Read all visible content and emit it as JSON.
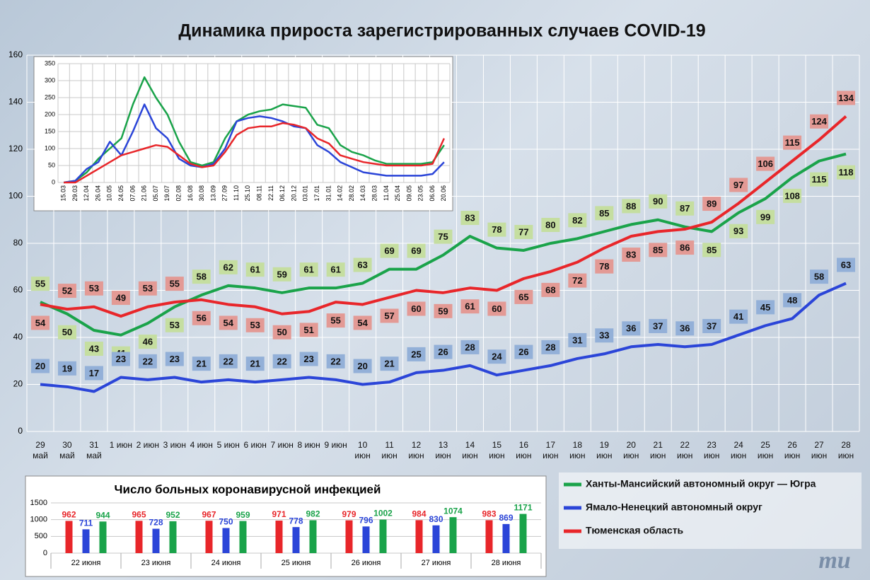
{
  "chart_data": [
    {
      "type": "line",
      "title": "Динамика прироста зарегистрированных случаев COVID-19",
      "categories": [
        "29 май",
        "30 май",
        "31 май",
        "1 июн",
        "2 июн",
        "3 июн",
        "4 июн",
        "5 июн",
        "6 июн",
        "7 июн",
        "8 июн",
        "9 июн",
        "10 июн",
        "11 июн",
        "12 июн",
        "13 июн",
        "14 июн",
        "15 июн",
        "16 июн",
        "17 июн",
        "18 июн",
        "19 июн",
        "20 июн",
        "21 июн",
        "22 июн",
        "23 июн",
        "24 июн",
        "25 июн",
        "26 июн",
        "27 июн",
        "28 июн"
      ],
      "series": [
        {
          "name": "Ханты-Мансийский автономный округ — Югра",
          "color": "#1aa34a",
          "label_color": "#c5dea0",
          "values": [
            55,
            50,
            43,
            41,
            46,
            53,
            58,
            62,
            61,
            59,
            61,
            61,
            63,
            69,
            69,
            75,
            83,
            78,
            77,
            80,
            82,
            85,
            88,
            90,
            87,
            85,
            93,
            99,
            108,
            115,
            118
          ]
        },
        {
          "name": "Ямало-Ненецкий автономный округ",
          "color": "#2b45d8",
          "label_color": "#93b0d8",
          "values": [
            20,
            19,
            17,
            23,
            22,
            23,
            21,
            22,
            21,
            22,
            23,
            22,
            20,
            21,
            25,
            26,
            28,
            24,
            26,
            28,
            31,
            33,
            36,
            37,
            36,
            37,
            41,
            45,
            48,
            58,
            63
          ]
        },
        {
          "name": "Тюменская область",
          "color": "#e8262a",
          "label_color": "#e39a95",
          "values": [
            54,
            52,
            53,
            49,
            53,
            55,
            56,
            54,
            53,
            50,
            51,
            55,
            54,
            57,
            60,
            59,
            61,
            60,
            65,
            68,
            72,
            78,
            83,
            85,
            86,
            89,
            97,
            106,
            115,
            124,
            134
          ]
        }
      ],
      "ylim": [
        0,
        160
      ],
      "yticks": [
        0,
        20,
        40,
        60,
        80,
        100,
        120,
        140,
        160
      ],
      "grid": true,
      "legend": "bottom-right"
    },
    {
      "type": "line",
      "categories": [
        "15.03",
        "29.03",
        "12.04",
        "26.04",
        "10.05",
        "24.05",
        "07.06",
        "21.06",
        "05.07",
        "19.07",
        "02.08",
        "16.08",
        "30.08",
        "13.09",
        "27.09",
        "11.10",
        "25.10",
        "08.11",
        "22.11",
        "06.12",
        "20.12",
        "03.01",
        "17.01",
        "31.01",
        "14.02",
        "28.02",
        "14.03",
        "28.03",
        "11.04",
        "25.04",
        "09.05",
        "23.05",
        "06.06",
        "20.06"
      ],
      "series": [
        {
          "color": "#1aa34a",
          "values": [
            0,
            5,
            30,
            70,
            100,
            130,
            230,
            310,
            250,
            200,
            120,
            60,
            50,
            60,
            130,
            180,
            200,
            210,
            215,
            230,
            225,
            220,
            170,
            160,
            110,
            90,
            80,
            65,
            55,
            55,
            55,
            55,
            60,
            110
          ]
        },
        {
          "color": "#2b45d8",
          "values": [
            0,
            5,
            40,
            60,
            120,
            80,
            150,
            230,
            160,
            130,
            70,
            50,
            45,
            55,
            100,
            180,
            190,
            195,
            190,
            180,
            165,
            160,
            110,
            90,
            60,
            45,
            30,
            25,
            20,
            20,
            20,
            20,
            25,
            60
          ]
        },
        {
          "color": "#e8262a",
          "values": [
            0,
            0,
            20,
            40,
            60,
            80,
            90,
            100,
            110,
            105,
            80,
            55,
            45,
            50,
            90,
            140,
            160,
            165,
            165,
            175,
            170,
            160,
            130,
            115,
            80,
            70,
            60,
            55,
            50,
            50,
            50,
            50,
            55,
            130
          ]
        }
      ],
      "ylim": [
        0,
        350
      ],
      "yticks": [
        0,
        50,
        100,
        150,
        200,
        250,
        300,
        350
      ],
      "grid": true
    },
    {
      "type": "bar",
      "title": "Число больных коронавирусной  инфекцией",
      "categories": [
        "22 июня",
        "23 июня",
        "24 июня",
        "25 июня",
        "26 июня",
        "27 июня",
        "28 июня"
      ],
      "series": [
        {
          "color": "#e8262a",
          "values": [
            962,
            965,
            967,
            971,
            979,
            984,
            983
          ]
        },
        {
          "color": "#2b45d8",
          "values": [
            711,
            728,
            750,
            778,
            796,
            830,
            869
          ]
        },
        {
          "color": "#1aa34a",
          "values": [
            944,
            952,
            959,
            982,
            1002,
            1074,
            1171
          ]
        }
      ],
      "ylim": [
        0,
        1500
      ],
      "yticks": [
        0,
        500,
        1000,
        1500
      ],
      "grid": true
    }
  ],
  "logo": "mu"
}
